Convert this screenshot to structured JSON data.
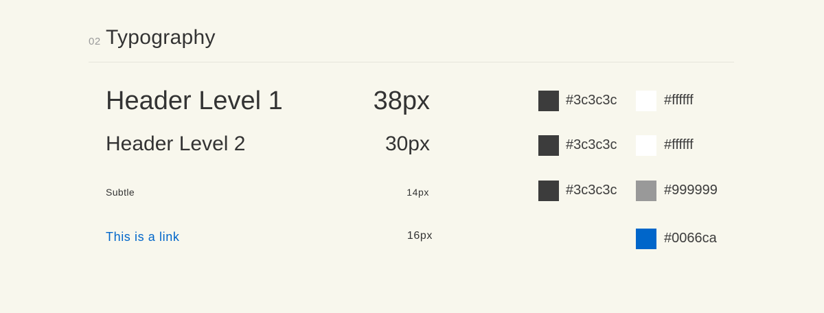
{
  "section": {
    "number": "02",
    "title": "Typography"
  },
  "rows": [
    {
      "label": "Header Level 1",
      "size": "38px",
      "color_a": {
        "hex": "#3c3c3c"
      },
      "color_b": {
        "hex": "#ffffff"
      }
    },
    {
      "label": "Header Level 2",
      "size": "30px",
      "color_a": {
        "hex": "#3c3c3c"
      },
      "color_b": {
        "hex": "#ffffff"
      }
    },
    {
      "label": "Subtle",
      "size": "14px",
      "color_a": {
        "hex": "#3c3c3c"
      },
      "color_b": {
        "hex": "#999999"
      }
    },
    {
      "label": "This is a link",
      "size": "16px",
      "color_b": {
        "hex": "#0066ca"
      }
    }
  ]
}
